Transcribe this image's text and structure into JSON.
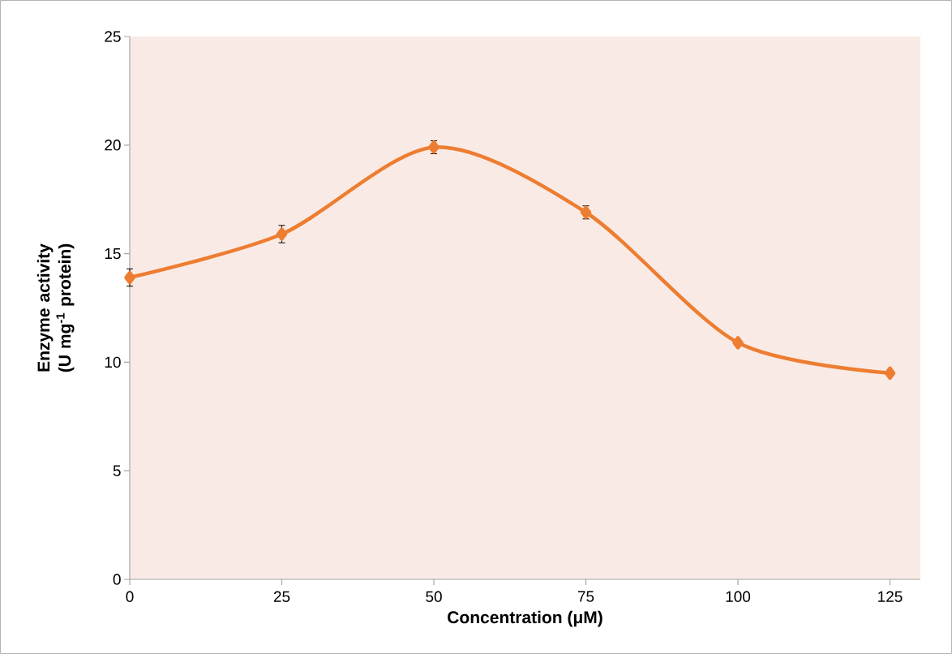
{
  "chart_data": {
    "type": "line",
    "xlabel": "Concentration (μM)",
    "ylabel": "Enzyme activity (U mg$^{-1}$ protein)",
    "x": [
      0,
      25,
      50,
      75,
      100,
      125
    ],
    "series": [
      {
        "color": "#ed7d31",
        "values": [
          13.9,
          15.9,
          19.9,
          16.9,
          10.9,
          9.5
        ],
        "errors": [
          0.4,
          0.4,
          0.3,
          0.3,
          null,
          null
        ]
      }
    ],
    "xlim": [
      0,
      130
    ],
    "xticks": [
      0,
      25,
      50,
      75,
      100,
      125
    ],
    "ylim": [
      0,
      25
    ],
    "yticks": [
      0,
      5,
      10,
      15,
      20,
      25
    ],
    "grid": false,
    "marker": "diamond",
    "line_style": "solid"
  }
}
